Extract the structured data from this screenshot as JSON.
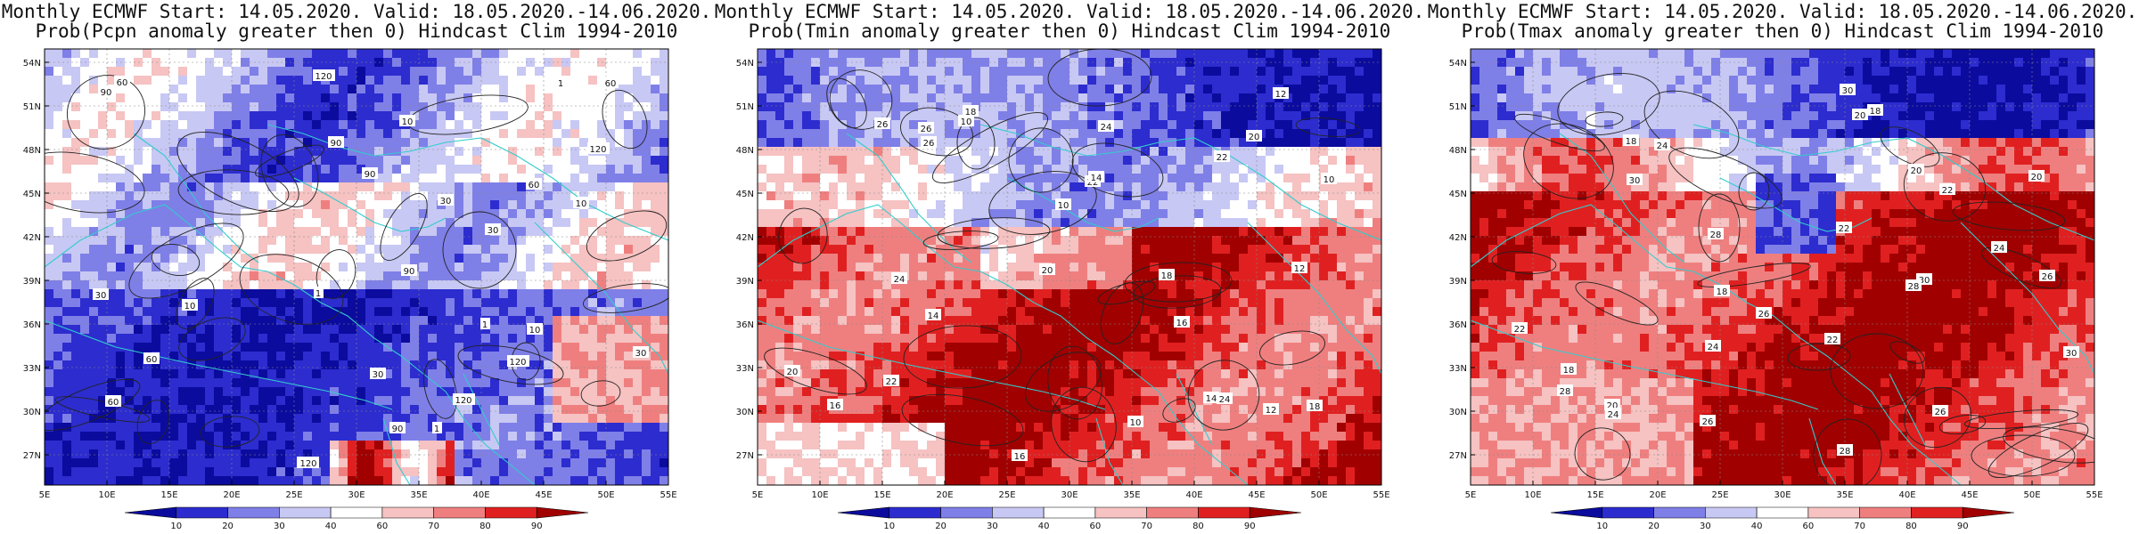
{
  "colors": {
    "levels": [
      "#0b0b9e",
      "#2c2ccf",
      "#7f7fe8",
      "#c8c8f4",
      "#ffffff",
      "#f6c2c2",
      "#ef7f7f",
      "#e02020",
      "#a00000"
    ],
    "coast": "#33cccc",
    "contour": "#222222"
  },
  "axes": {
    "lat_ticks": [
      "54N",
      "51N",
      "48N",
      "45N",
      "42N",
      "39N",
      "36N",
      "33N",
      "30N",
      "27N"
    ],
    "lon_ticks": [
      "5E",
      "10E",
      "15E",
      "20E",
      "25E",
      "30E",
      "35E",
      "40E",
      "45E",
      "50E",
      "55E"
    ]
  },
  "colorbar_ticks": [
    "10",
    "20",
    "30",
    "40",
    "60",
    "70",
    "80",
    "90"
  ],
  "panels": [
    {
      "title_line1": "Monthly ECMWF Start: 14.05.2020. Valid: 18.05.2020.-14.06.2020.",
      "title_line2": "Prob(Pcpn anomaly greater then 0) Hindcast Clim 1994-2010",
      "variable": "Pcpn",
      "labels": [
        "60",
        "90",
        "120",
        "30",
        "10",
        "1"
      ]
    },
    {
      "title_line1": "Monthly ECMWF Start: 14.05.2020. Valid: 18.05.2020.-14.06.2020.",
      "title_line2": "Prob(Tmin anomaly greater then 0) Hindcast Clim 1994-2010",
      "variable": "Tmin",
      "labels": [
        "10",
        "12",
        "14",
        "16",
        "18",
        "20",
        "22",
        "24",
        "26"
      ]
    },
    {
      "title_line1": "Monthly ECMWF Start: 14.05.2020. Valid: 18.05.2020.-14.06.2020.",
      "title_line2": "Prob(Tmax anomaly greater then 0) Hindcast Clim 1994-2010",
      "variable": "Tmax",
      "labels": [
        "18",
        "20",
        "22",
        "24",
        "26",
        "28",
        "30"
      ]
    }
  ]
}
